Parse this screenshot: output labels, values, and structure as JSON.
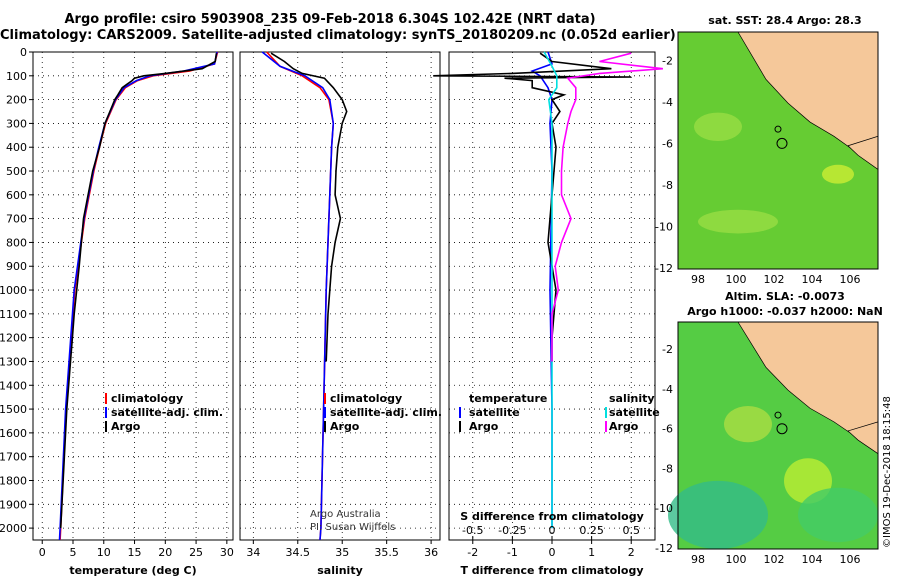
{
  "header": {
    "title_line1": "Argo profile: csiro 5903908_235 09-Feb-2018 6.304S 102.42E (NRT data)",
    "title_line2": "Climatology: CARS2009. Satellite-adjusted climatology: synTS_20180209.nc (0.052d earlier)"
  },
  "colors": {
    "climatology": "#ff0000",
    "satellite": "#0000ff",
    "argo": "#000000",
    "sat_salinity": "#00e0e0",
    "argo_salinity": "#ff00ff",
    "land": "#f5c89a"
  },
  "chart_data": [
    {
      "type": "line",
      "xlabel": "temperature (deg C)",
      "ylim": [
        2050,
        0
      ],
      "xlim": [
        -1.5,
        31
      ],
      "x_ticks": [
        0,
        5,
        10,
        15,
        20,
        25,
        30
      ],
      "y_ticks": [
        0,
        100,
        200,
        300,
        400,
        500,
        600,
        700,
        800,
        900,
        1000,
        1100,
        1200,
        1300,
        1400,
        1500,
        1600,
        1700,
        1800,
        1900,
        2000
      ],
      "legend": [
        "climatology",
        "satellite-adj. clim.",
        "Argo"
      ],
      "series": [
        {
          "name": "climatology",
          "depth": [
            0,
            50,
            80,
            100,
            120,
            150,
            200,
            300,
            400,
            500,
            700,
            1000,
            1500,
            2000,
            2050
          ],
          "values": [
            28.5,
            28.0,
            24.0,
            18.0,
            15.5,
            13.5,
            12.0,
            10.3,
            9.3,
            8.4,
            6.9,
            5.3,
            3.9,
            3.0,
            2.9
          ]
        },
        {
          "name": "satellite-adj. clim.",
          "depth": [
            0,
            50,
            80,
            100,
            120,
            150,
            200,
            300,
            400,
            500,
            700,
            1000,
            1500,
            2000,
            2050
          ],
          "values": [
            28.4,
            28.0,
            23.0,
            17.5,
            15.3,
            13.3,
            11.9,
            10.2,
            9.2,
            8.3,
            6.8,
            5.2,
            3.8,
            2.9,
            2.8
          ]
        },
        {
          "name": "Argo",
          "depth": [
            5,
            40,
            70,
            90,
            100,
            110,
            120,
            150,
            180,
            200,
            250,
            300,
            400,
            500,
            700,
            900,
            1000,
            1100,
            1200,
            1300,
            1500,
            2000
          ],
          "values": [
            28.3,
            28.1,
            26.0,
            20.0,
            16.5,
            15.0,
            14.6,
            13.0,
            12.3,
            11.8,
            11.0,
            10.2,
            9.3,
            8.2,
            6.7,
            6.0,
            5.6,
            5.2,
            4.9,
            4.6,
            4.0,
            3.0
          ]
        }
      ]
    },
    {
      "type": "line",
      "xlabel": "salinity",
      "ylim": [
        2050,
        0
      ],
      "xlim": [
        33.85,
        36.1
      ],
      "x_ticks": [
        34,
        34.5,
        35,
        35.5,
        36
      ],
      "legend": [
        "climatology",
        "satellite-adj. clim.",
        "Argo"
      ],
      "credit": [
        "Argo Australia",
        "PI: Susan Wijffels"
      ],
      "series": [
        {
          "name": "climatology",
          "depth": [
            0,
            60,
            100,
            150,
            200,
            300,
            400,
            600,
            1000,
            1500,
            2000,
            2050
          ],
          "values": [
            34.15,
            34.3,
            34.55,
            34.75,
            34.85,
            34.9,
            34.88,
            34.86,
            34.82,
            34.79,
            34.76,
            34.75
          ]
        },
        {
          "name": "satellite-adj. clim.",
          "depth": [
            0,
            60,
            100,
            150,
            200,
            300,
            400,
            600,
            1000,
            1500,
            2000,
            2050
          ],
          "values": [
            34.1,
            34.3,
            34.58,
            34.78,
            34.86,
            34.9,
            34.88,
            34.86,
            34.82,
            34.79,
            34.76,
            34.75
          ]
        },
        {
          "name": "Argo",
          "depth": [
            5,
            40,
            70,
            90,
            110,
            150,
            200,
            250,
            300,
            400,
            500,
            600,
            700,
            800,
            900,
            1000,
            1100,
            1200,
            1300
          ],
          "values": [
            34.2,
            34.35,
            34.45,
            34.55,
            34.8,
            34.9,
            35.0,
            35.05,
            35.0,
            34.95,
            34.93,
            34.92,
            34.98,
            34.92,
            34.88,
            34.86,
            34.84,
            34.83,
            34.82
          ]
        }
      ]
    },
    {
      "type": "line",
      "xlabel": "T difference from climatology",
      "xlabel2": "S difference from climatology",
      "ylim": [
        2050,
        0
      ],
      "xlim": [
        -2.6,
        2.6
      ],
      "x_ticks": [
        -2,
        -1,
        0,
        1,
        2
      ],
      "x_tick_labels": [
        "-2",
        "-1",
        "0",
        "1",
        "2"
      ],
      "s_ticks": [
        -0.5,
        -0.25,
        0,
        0.25,
        0.5
      ],
      "s_tick_labels": [
        "-0.5",
        "-0.25",
        "0",
        "0.25",
        "0.5"
      ],
      "legend_left_title": "temperature",
      "legend_right_title": "salinity",
      "legend_left": [
        "satellite",
        "Argo"
      ],
      "legend_right": [
        "satellite",
        "Argo"
      ],
      "series": [
        {
          "name": "T satellite",
          "depth": [
            0,
            50,
            80,
            100,
            150,
            200,
            300,
            500,
            1000,
            1500,
            2000
          ],
          "values": [
            -0.1,
            0.0,
            -0.5,
            -0.3,
            -0.1,
            0.0,
            -0.05,
            0.0,
            -0.05,
            0.0,
            0.0
          ]
        },
        {
          "name": "T Argo",
          "depth": [
            5,
            40,
            70,
            90,
            100,
            105,
            110,
            120,
            150,
            180,
            200,
            250,
            300,
            400,
            600,
            800,
            1000,
            1200,
            1300
          ],
          "values": [
            -0.3,
            0.0,
            1.5,
            -1.0,
            -3.0,
            2.0,
            -1.2,
            -0.5,
            -0.5,
            0.3,
            0.0,
            0.2,
            0.0,
            0.1,
            0.0,
            -0.1,
            0.1,
            0.0,
            0.0
          ]
        },
        {
          "name": "S satellite",
          "depth": [
            0,
            60,
            100,
            150,
            200,
            300,
            500,
            1000,
            1500,
            2000
          ],
          "values": [
            -0.05,
            0.0,
            0.03,
            0.03,
            -0.02,
            0.0,
            0.0,
            0.0,
            0.0,
            0.0
          ]
        },
        {
          "name": "S Argo",
          "depth": [
            5,
            40,
            70,
            90,
            110,
            150,
            200,
            250,
            300,
            400,
            500,
            600,
            700,
            800,
            900,
            1000,
            1100,
            1200,
            1300
          ],
          "values": [
            0.5,
            0.3,
            0.7,
            0.3,
            0.1,
            0.15,
            0.15,
            0.12,
            0.1,
            0.07,
            0.06,
            0.06,
            0.12,
            0.06,
            0.02,
            0.04,
            0.0,
            0.0,
            0.0
          ]
        }
      ]
    }
  ],
  "maps": [
    {
      "title_lines": [
        "sat. SST: 28.4 Argo: 28.3"
      ],
      "lon_ticks": [
        "98",
        "100",
        "102",
        "104",
        "106"
      ],
      "lat_ticks": [
        "-2",
        "-4",
        "-6",
        "-8",
        "-10",
        "-12"
      ]
    },
    {
      "title_lines": [
        "Altim. SLA: -0.0073",
        "Argo h1000: -0.037 h2000: NaN"
      ],
      "lon_ticks": [
        "98",
        "100",
        "102",
        "104",
        "106"
      ],
      "lat_ticks": [
        "-2",
        "-4",
        "-6",
        "-8",
        "-10",
        "-12"
      ]
    }
  ],
  "footer": {
    "stamp": "©IMOS 19-Dec-2018 18:15:48"
  }
}
